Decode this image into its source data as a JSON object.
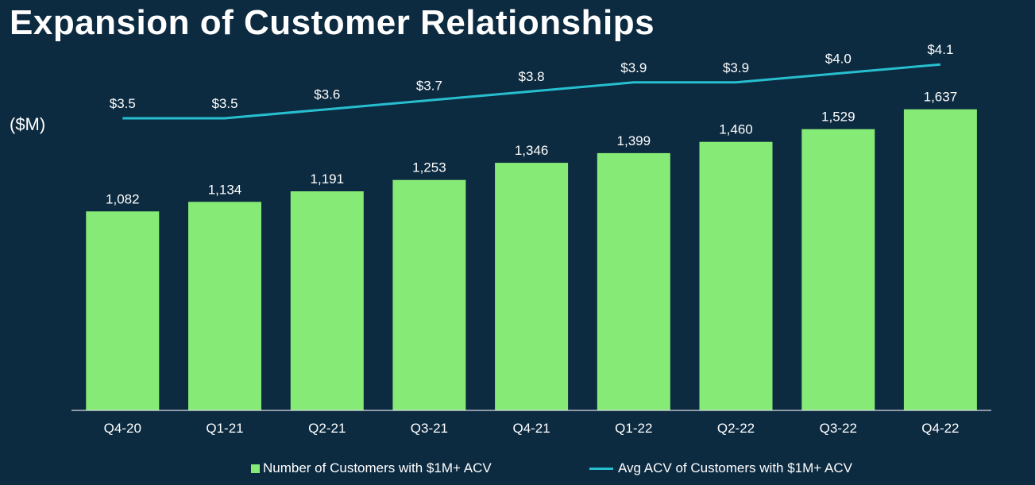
{
  "chart_data": {
    "type": "bar",
    "title": "Expansion of Customer Relationships",
    "unit_label": "($M)",
    "categories": [
      "Q4-20",
      "Q1-21",
      "Q2-21",
      "Q3-21",
      "Q4-21",
      "Q1-22",
      "Q2-22",
      "Q3-22",
      "Q4-22"
    ],
    "series": [
      {
        "name": "Number of Customers with $1M+ ACV",
        "type": "bar",
        "values": [
          1082,
          1134,
          1191,
          1253,
          1346,
          1399,
          1460,
          1529,
          1637
        ],
        "labels": [
          "1,082",
          "1,134",
          "1,191",
          "1,253",
          "1,346",
          "1,399",
          "1,460",
          "1,529",
          "1,637"
        ],
        "color": "#86ea76"
      },
      {
        "name": "Avg ACV of Customers with $1M+ ACV",
        "type": "line",
        "values": [
          3.5,
          3.5,
          3.6,
          3.7,
          3.8,
          3.9,
          3.9,
          4.0,
          4.1
        ],
        "labels": [
          "$3.5",
          "$3.5",
          "$3.6",
          "$3.7",
          "$3.8",
          "$3.9",
          "$3.9",
          "$4.0",
          "$4.1"
        ],
        "color": "#27bfcf"
      }
    ],
    "grid": false,
    "legend_position": "bottom"
  }
}
